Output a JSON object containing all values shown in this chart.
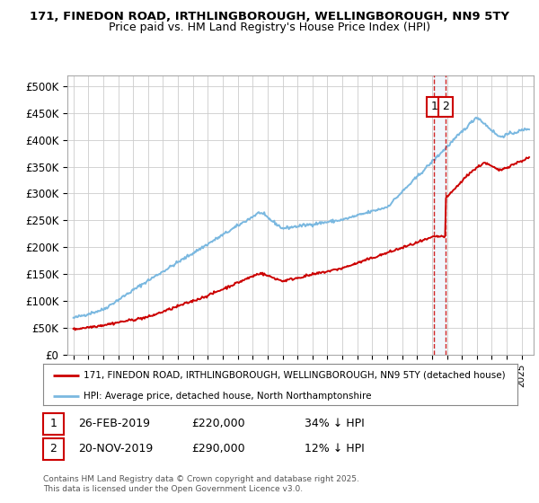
{
  "title_line1": "171, FINEDON ROAD, IRTHLINGBOROUGH, WELLINGBOROUGH, NN9 5TY",
  "title_line2": "Price paid vs. HM Land Registry's House Price Index (HPI)",
  "ylim": [
    0,
    520000
  ],
  "yticks": [
    0,
    50000,
    100000,
    150000,
    200000,
    250000,
    300000,
    350000,
    400000,
    450000,
    500000
  ],
  "ytick_labels": [
    "£0",
    "£50K",
    "£100K",
    "£150K",
    "£200K",
    "£250K",
    "£300K",
    "£350K",
    "£400K",
    "£450K",
    "£500K"
  ],
  "hpi_color": "#7ab8e0",
  "price_color": "#cc0000",
  "marker1_x": 2019.15,
  "marker2_x": 2019.9,
  "marker1_price": 220000,
  "marker2_price": 290000,
  "legend_line1": "171, FINEDON ROAD, IRTHLINGBOROUGH, WELLINGBOROUGH, NN9 5TY (detached house)",
  "legend_line2": "HPI: Average price, detached house, North Northamptonshire",
  "ann1_date": "26-FEB-2019",
  "ann1_price": "£220,000",
  "ann1_hpi": "34% ↓ HPI",
  "ann2_date": "20-NOV-2019",
  "ann2_price": "£290,000",
  "ann2_hpi": "12% ↓ HPI",
  "footer": "Contains HM Land Registry data © Crown copyright and database right 2025.\nThis data is licensed under the Open Government Licence v3.0.",
  "background_color": "#ffffff",
  "grid_color": "#cccccc",
  "xmin": 1994.6,
  "xmax": 2025.8
}
